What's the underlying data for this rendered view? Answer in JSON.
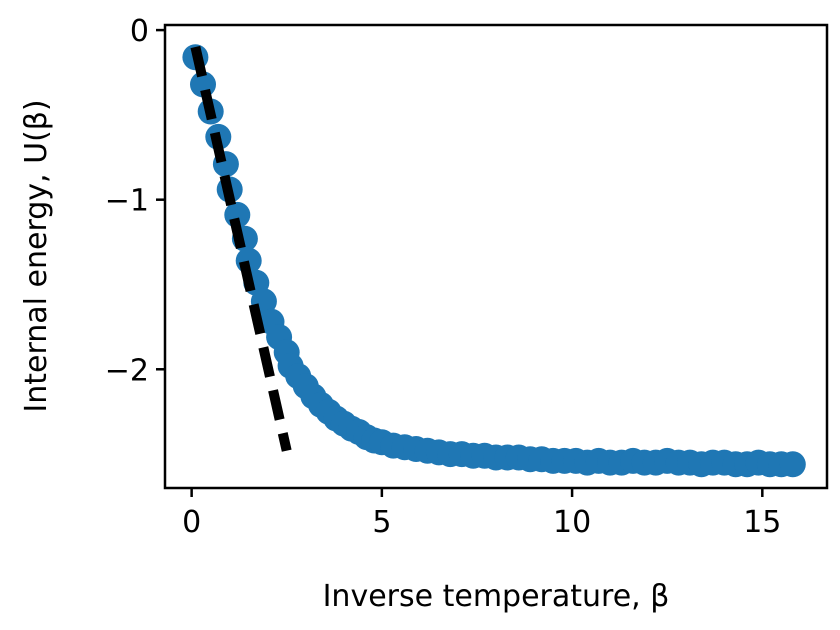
{
  "chart_data": {
    "type": "scatter",
    "title": "",
    "xlabel": "Inverse temperature, β",
    "ylabel": "Internal energy, U(β)",
    "xlim": [
      -0.7,
      16.7
    ],
    "ylim": [
      -2.7,
      0.03
    ],
    "xticks": [
      0,
      5,
      10,
      15
    ],
    "xtick_labels": [
      "0",
      "5",
      "10",
      "15"
    ],
    "yticks": [
      0,
      -1,
      -2
    ],
    "ytick_labels": [
      "0",
      "−1",
      "−2"
    ],
    "grid": false,
    "legend": "none",
    "series": [
      {
        "kind": "scatter",
        "color": "#1f77b4",
        "x": [
          0.1,
          0.3,
          0.5,
          0.7,
          0.9,
          1.0,
          1.2,
          1.4,
          1.5,
          1.7,
          1.9,
          2.1,
          2.3,
          2.5,
          2.6,
          2.8,
          3.0,
          3.2,
          3.4,
          3.6,
          3.8,
          4.0,
          4.2,
          4.4,
          4.6,
          4.8,
          5.0,
          5.3,
          5.6,
          5.9,
          6.2,
          6.5,
          6.8,
          7.1,
          7.4,
          7.7,
          8.0,
          8.3,
          8.6,
          8.9,
          9.2,
          9.5,
          9.8,
          10.1,
          10.4,
          10.7,
          11.0,
          11.3,
          11.6,
          11.9,
          12.2,
          12.5,
          12.8,
          13.1,
          13.4,
          13.7,
          14.0,
          14.3,
          14.6,
          14.9,
          15.2,
          15.5,
          15.8
        ],
        "y": [
          -0.16,
          -0.32,
          -0.48,
          -0.63,
          -0.79,
          -0.94,
          -1.09,
          -1.23,
          -1.36,
          -1.49,
          -1.6,
          -1.72,
          -1.81,
          -1.9,
          -1.98,
          -2.04,
          -2.1,
          -2.16,
          -2.21,
          -2.25,
          -2.29,
          -2.32,
          -2.35,
          -2.37,
          -2.4,
          -2.42,
          -2.43,
          -2.45,
          -2.46,
          -2.47,
          -2.48,
          -2.49,
          -2.5,
          -2.5,
          -2.51,
          -2.51,
          -2.52,
          -2.52,
          -2.52,
          -2.53,
          -2.53,
          -2.54,
          -2.54,
          -2.54,
          -2.55,
          -2.54,
          -2.55,
          -2.55,
          -2.54,
          -2.55,
          -2.55,
          -2.54,
          -2.55,
          -2.55,
          -2.56,
          -2.55,
          -2.55,
          -2.56,
          -2.56,
          -2.55,
          -2.56,
          -2.56,
          -2.56
        ]
      },
      {
        "kind": "line",
        "style": "dashed",
        "color": "#000000",
        "x": [
          0.1,
          2.5
        ],
        "y": [
          -0.1,
          -2.48
        ]
      }
    ]
  }
}
